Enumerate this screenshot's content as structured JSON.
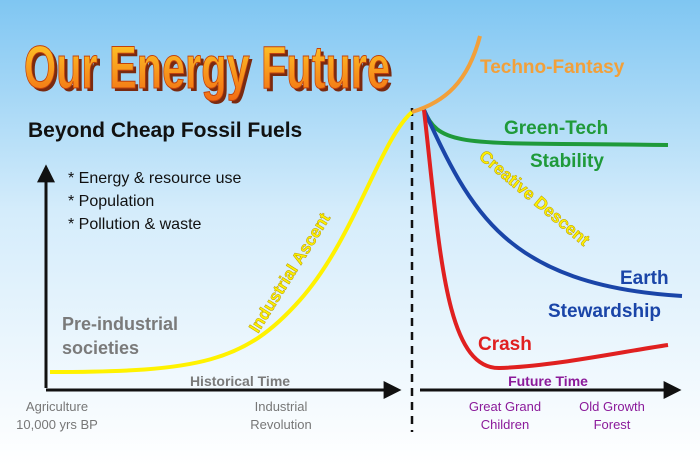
{
  "title": "Our Energy Future",
  "subtitle": "Beyond Cheap Fossil Fuels",
  "bullets": [
    "* Energy & resource use",
    "* Population",
    "* Pollution & waste"
  ],
  "past": {
    "label": [
      "Pre-industrial",
      "societies"
    ],
    "curve": "Industrial Ascent",
    "axis": "Historical Time",
    "ticks": [
      [
        "Agriculture",
        "10,000 yrs BP"
      ],
      [
        "Industrial",
        "Revolution"
      ]
    ]
  },
  "future": {
    "axis": "Future Time",
    "ticks": [
      [
        "Great Grand",
        "Children"
      ],
      [
        "Old Growth",
        "Forest"
      ]
    ],
    "scenarios": {
      "techno": "Techno-Fantasy",
      "green": [
        "Green-Tech",
        "Stability"
      ],
      "descent": "Creative Descent",
      "earth": [
        "Earth",
        "Stewardship"
      ],
      "crash": "Crash"
    }
  }
}
